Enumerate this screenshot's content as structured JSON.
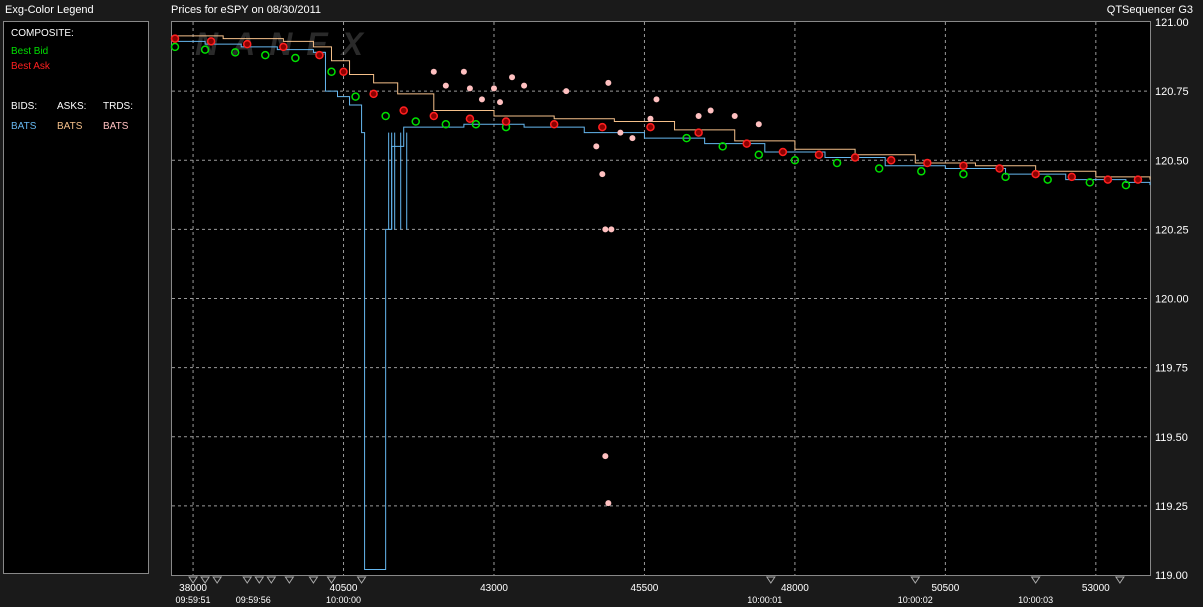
{
  "header": {
    "legend_title": "Exg-Color Legend",
    "chart_title": "Prices for  eSPY  on  08/30/2011",
    "app_name": "QTSequencer G3"
  },
  "legend": {
    "composite_label": "COMPOSITE:",
    "best_bid": "Best Bid",
    "best_ask": "Best Ask",
    "bids_label": "BIDS:",
    "asks_label": "ASKS:",
    "trds_label": "TRDS:",
    "bids_exchange": "BATS",
    "asks_exchange": "BATS",
    "trds_exchange": "BATS"
  },
  "watermark": "NANEX",
  "colors": {
    "best_bid": "#00e000",
    "best_ask": "#ff2020",
    "bats_bid": "#66b8f0",
    "bats_ask": "#f5c08a",
    "bats_trade": "#ffc0c0",
    "grid": "#9a9a9a"
  },
  "chart_data": {
    "type": "line",
    "title": "Prices for  eSPY  on  08/30/2011",
    "xlim": [
      37650,
      53900
    ],
    "ylim": [
      119.0,
      121.0
    ],
    "grid": true,
    "x_ticks": [
      38000,
      40500,
      43000,
      45500,
      48000,
      50500,
      53000
    ],
    "x_tick_labels": [
      "38000",
      "40500",
      "43000",
      "45500",
      "48000",
      "50500",
      "53000"
    ],
    "time_labels": [
      {
        "x": 38000,
        "label": "09:59:51"
      },
      {
        "x": 39000,
        "label": "09:59:56"
      },
      {
        "x": 40500,
        "label": "10:00:00"
      },
      {
        "x": 47500,
        "label": "10:00:01"
      },
      {
        "x": 50000,
        "label": "10:00:02"
      },
      {
        "x": 52000,
        "label": "10:00:03"
      }
    ],
    "y_ticks": [
      119.0,
      119.25,
      119.5,
      119.75,
      120.0,
      120.25,
      120.5,
      120.75,
      121.0
    ],
    "y_tick_labels": [
      "119.00",
      "119.25",
      "119.50",
      "119.75",
      "120.00",
      "120.25",
      "120.50",
      "120.75",
      "121.00"
    ],
    "series": [
      {
        "name": "BATS",
        "kind": "bid",
        "color": "#66b8f0",
        "points": [
          [
            37650,
            120.93
          ],
          [
            38200,
            120.92
          ],
          [
            38800,
            120.91
          ],
          [
            39400,
            120.9
          ],
          [
            40000,
            120.89
          ],
          [
            40200,
            120.75
          ],
          [
            40400,
            120.73
          ],
          [
            40600,
            120.7
          ],
          [
            40800,
            120.6
          ],
          [
            40850,
            119.02
          ],
          [
            41100,
            119.02
          ],
          [
            41200,
            120.25
          ],
          [
            41300,
            120.55
          ],
          [
            41500,
            120.62
          ],
          [
            42500,
            120.63
          ],
          [
            43500,
            120.62
          ],
          [
            44500,
            120.6
          ],
          [
            45500,
            120.58
          ],
          [
            46500,
            120.56
          ],
          [
            47500,
            120.53
          ],
          [
            48500,
            120.51
          ],
          [
            49500,
            120.48
          ],
          [
            50500,
            120.47
          ],
          [
            51500,
            120.45
          ],
          [
            52500,
            120.43
          ],
          [
            53500,
            120.42
          ],
          [
            53900,
            120.41
          ]
        ]
      },
      {
        "name": "BATS",
        "kind": "ask",
        "color": "#f5c08a",
        "points": [
          [
            37650,
            120.95
          ],
          [
            38500,
            120.94
          ],
          [
            39500,
            120.93
          ],
          [
            40000,
            120.91
          ],
          [
            40300,
            120.86
          ],
          [
            40600,
            120.81
          ],
          [
            41000,
            120.78
          ],
          [
            41400,
            120.74
          ],
          [
            42000,
            120.68
          ],
          [
            43000,
            120.66
          ],
          [
            44000,
            120.65
          ],
          [
            45000,
            120.64
          ],
          [
            46000,
            120.61
          ],
          [
            47000,
            120.57
          ],
          [
            48000,
            120.54
          ],
          [
            49000,
            120.52
          ],
          [
            50000,
            120.49
          ],
          [
            51000,
            120.48
          ],
          [
            52000,
            120.46
          ],
          [
            53000,
            120.44
          ],
          [
            53900,
            120.43
          ]
        ]
      },
      {
        "name": "Best Bid",
        "kind": "best_bid",
        "color": "#00e000",
        "points": [
          [
            37700,
            120.91
          ],
          [
            38200,
            120.9
          ],
          [
            38700,
            120.89
          ],
          [
            39200,
            120.88
          ],
          [
            39700,
            120.87
          ],
          [
            40300,
            120.82
          ],
          [
            40700,
            120.73
          ],
          [
            41200,
            120.66
          ],
          [
            41700,
            120.64
          ],
          [
            42200,
            120.63
          ],
          [
            42700,
            120.63
          ],
          [
            43200,
            120.62
          ],
          [
            46200,
            120.58
          ],
          [
            46800,
            120.55
          ],
          [
            47400,
            120.52
          ],
          [
            48000,
            120.5
          ],
          [
            48700,
            120.49
          ],
          [
            49400,
            120.47
          ],
          [
            50100,
            120.46
          ],
          [
            50800,
            120.45
          ],
          [
            51500,
            120.44
          ],
          [
            52200,
            120.43
          ],
          [
            52900,
            120.42
          ],
          [
            53500,
            120.41
          ]
        ]
      },
      {
        "name": "Best Ask",
        "kind": "best_ask",
        "color": "#ff2020",
        "points": [
          [
            37700,
            120.94
          ],
          [
            38300,
            120.93
          ],
          [
            38900,
            120.92
          ],
          [
            39500,
            120.91
          ],
          [
            40100,
            120.88
          ],
          [
            40500,
            120.82
          ],
          [
            41000,
            120.74
          ],
          [
            41500,
            120.68
          ],
          [
            42000,
            120.66
          ],
          [
            42600,
            120.65
          ],
          [
            43200,
            120.64
          ],
          [
            44000,
            120.63
          ],
          [
            44800,
            120.62
          ],
          [
            45600,
            120.62
          ],
          [
            46400,
            120.6
          ],
          [
            47200,
            120.56
          ],
          [
            47800,
            120.53
          ],
          [
            48400,
            120.52
          ],
          [
            49000,
            120.51
          ],
          [
            49600,
            120.5
          ],
          [
            50200,
            120.49
          ],
          [
            50800,
            120.48
          ],
          [
            51400,
            120.47
          ],
          [
            52000,
            120.45
          ],
          [
            52600,
            120.44
          ],
          [
            53200,
            120.43
          ],
          [
            53700,
            120.43
          ]
        ]
      },
      {
        "name": "BATS",
        "kind": "trade",
        "color": "#ffc0c0",
        "points": [
          [
            42000,
            120.82
          ],
          [
            42200,
            120.77
          ],
          [
            42500,
            120.82
          ],
          [
            42600,
            120.76
          ],
          [
            42800,
            120.72
          ],
          [
            43000,
            120.76
          ],
          [
            43100,
            120.71
          ],
          [
            43300,
            120.8
          ],
          [
            43500,
            120.77
          ],
          [
            44200,
            120.75
          ],
          [
            44700,
            120.55
          ],
          [
            44800,
            120.45
          ],
          [
            44850,
            120.25
          ],
          [
            44950,
            120.25
          ],
          [
            44900,
            120.78
          ],
          [
            45100,
            120.6
          ],
          [
            45300,
            120.58
          ],
          [
            45600,
            120.65
          ],
          [
            45700,
            120.72
          ],
          [
            46400,
            120.66
          ],
          [
            46600,
            120.68
          ],
          [
            47000,
            120.66
          ],
          [
            47400,
            120.63
          ],
          [
            44850,
            119.43
          ],
          [
            44900,
            119.26
          ]
        ]
      }
    ]
  }
}
